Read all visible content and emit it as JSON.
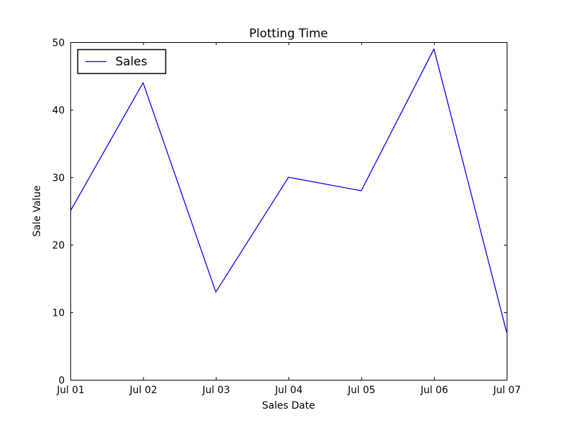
{
  "figure": {
    "background": "#ffffff"
  },
  "chart_data": {
    "type": "line",
    "title": "Plotting Time",
    "xlabel": "Sales Date",
    "ylabel": "Sale Value",
    "categories": [
      "Jul 01",
      "Jul 02",
      "Jul 03",
      "Jul 04",
      "Jul 05",
      "Jul 06",
      "Jul 07"
    ],
    "series": [
      {
        "name": "Sales",
        "values": [
          25,
          44,
          13,
          30,
          28,
          49,
          7
        ],
        "color": "#0000ff"
      }
    ],
    "ylim": [
      0,
      50
    ],
    "yticks": [
      0,
      10,
      20,
      30,
      40,
      50
    ],
    "grid": false,
    "legend": {
      "position": "upper-left",
      "entries": [
        "Sales"
      ]
    },
    "axis_color": "#000000",
    "text_color": "#000000"
  }
}
